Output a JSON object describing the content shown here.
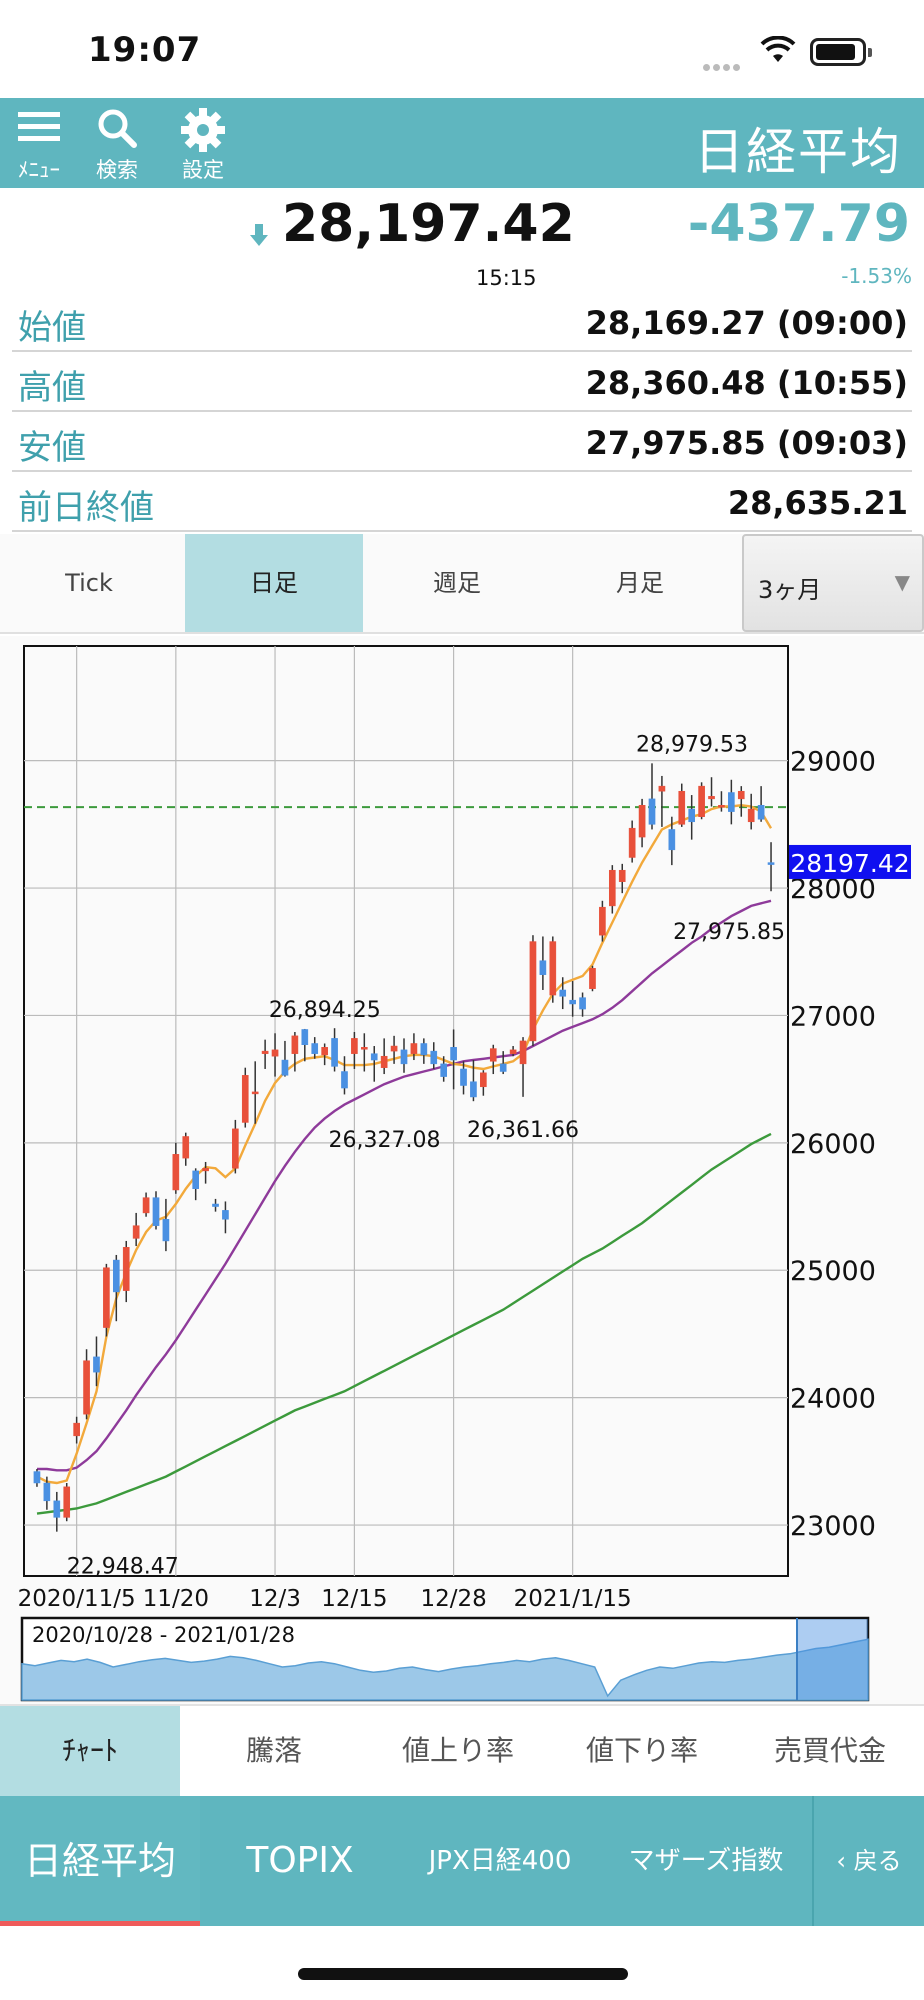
{
  "status_bar": {
    "time": "19:07"
  },
  "header": {
    "menu_label": "ﾒﾆｭｰ",
    "search_label": "検索",
    "settings_label": "設定",
    "title": "日経平均"
  },
  "quote": {
    "price": "28,197.42",
    "time": "15:15",
    "change": "-437.79",
    "change_pct": "-1.53%",
    "rows": [
      {
        "label": "始値",
        "value": "28,169.27 (09:00)"
      },
      {
        "label": "高値",
        "value": "28,360.48 (10:55)"
      },
      {
        "label": "安値",
        "value": "27,975.85 (09:03)"
      },
      {
        "label": "前日終値",
        "value": "28,635.21"
      }
    ]
  },
  "period_tabs": [
    {
      "label": "Tick",
      "active": false
    },
    {
      "label": "日足",
      "active": true
    },
    {
      "label": "週足",
      "active": false
    },
    {
      "label": "月足",
      "active": false
    }
  ],
  "period_select": {
    "value": "3ヶ月",
    "arrow": "▼"
  },
  "chart_data": {
    "type": "candlestick",
    "y_axis": {
      "min": 22600,
      "max": 29900,
      "ticks": [
        23000,
        24000,
        25000,
        26000,
        27000,
        28000,
        29000
      ],
      "position": "right"
    },
    "x_ticks": [
      "2020/11/5",
      "11/20",
      "12/3",
      "12/15",
      "12/28",
      "2021/1/15"
    ],
    "current_price_label": "28197.42",
    "reference_line": 28635,
    "annotations": [
      {
        "text": "22,948.47",
        "value": 22948.47
      },
      {
        "text": "26,894.25",
        "value": 26894.25
      },
      {
        "text": "26,327.08",
        "value": 26327.08
      },
      {
        "text": "26,361.66",
        "value": 26361.66
      },
      {
        "text": "28,979.53",
        "value": 28979.53
      },
      {
        "text": "27,975.85",
        "value": 27975.85
      }
    ],
    "candles": [
      [
        23420,
        23440,
        23300,
        23330
      ],
      [
        23330,
        23380,
        23120,
        23190
      ],
      [
        23190,
        23260,
        22948,
        23060
      ],
      [
        23060,
        23330,
        23030,
        23300
      ],
      [
        23700,
        23850,
        23640,
        23800
      ],
      [
        23870,
        24380,
        23830,
        24290
      ],
      [
        24320,
        24480,
        24090,
        24200
      ],
      [
        24550,
        25050,
        24480,
        25020
      ],
      [
        25080,
        25120,
        24600,
        24830
      ],
      [
        24840,
        25230,
        24750,
        25180
      ],
      [
        25250,
        25450,
        25190,
        25350
      ],
      [
        25450,
        25610,
        25420,
        25570
      ],
      [
        25570,
        25620,
        25320,
        25350
      ],
      [
        25400,
        25560,
        25150,
        25230
      ],
      [
        25630,
        26000,
        25600,
        25910
      ],
      [
        25880,
        26080,
        25820,
        26050
      ],
      [
        25780,
        25800,
        25550,
        25640
      ],
      [
        25780,
        25850,
        25680,
        25800
      ],
      [
        25520,
        25560,
        25460,
        25500
      ],
      [
        25470,
        25540,
        25290,
        25400
      ],
      [
        25800,
        26180,
        25760,
        26110
      ],
      [
        26160,
        26590,
        26120,
        26530
      ],
      [
        26400,
        26640,
        26150,
        26400
      ],
      [
        26700,
        26810,
        26580,
        26720
      ],
      [
        26680,
        26860,
        26520,
        26730
      ],
      [
        26650,
        26800,
        26520,
        26530
      ],
      [
        26700,
        26870,
        26560,
        26840
      ],
      [
        26890,
        26894,
        26640,
        26770
      ],
      [
        26780,
        26830,
        26660,
        26700
      ],
      [
        26690,
        26780,
        26610,
        26750
      ],
      [
        26820,
        26900,
        26560,
        26600
      ],
      [
        26560,
        26680,
        26380,
        26430
      ],
      [
        26700,
        26870,
        26580,
        26820
      ],
      [
        26740,
        26860,
        26560,
        26750
      ],
      [
        26700,
        26760,
        26480,
        26650
      ],
      [
        26590,
        26820,
        26540,
        26680
      ],
      [
        26720,
        26840,
        26620,
        26760
      ],
      [
        26730,
        26820,
        26550,
        26620
      ],
      [
        26700,
        26860,
        26650,
        26780
      ],
      [
        26780,
        26820,
        26620,
        26690
      ],
      [
        26720,
        26790,
        26580,
        26620
      ],
      [
        26620,
        26680,
        26480,
        26520
      ],
      [
        26750,
        26890,
        26420,
        26650
      ],
      [
        26580,
        26640,
        26380,
        26450
      ],
      [
        26480,
        26650,
        26327,
        26360
      ],
      [
        26440,
        26570,
        26370,
        26550
      ],
      [
        26640,
        26770,
        26540,
        26740
      ],
      [
        26620,
        26720,
        26540,
        26560
      ],
      [
        26700,
        26760,
        26680,
        26730
      ],
      [
        26620,
        26830,
        26361,
        26800
      ],
      [
        26800,
        27630,
        26760,
        27580
      ],
      [
        27430,
        27620,
        27200,
        27320
      ],
      [
        27160,
        27620,
        27100,
        27580
      ],
      [
        27200,
        27300,
        27050,
        27150
      ],
      [
        27120,
        27270,
        26990,
        27090
      ],
      [
        27140,
        27180,
        26990,
        27050
      ],
      [
        27210,
        27390,
        27190,
        27370
      ],
      [
        27630,
        27900,
        27580,
        27850
      ],
      [
        27860,
        28180,
        27800,
        28140
      ],
      [
        28050,
        28190,
        27960,
        28140
      ],
      [
        28240,
        28530,
        28200,
        28470
      ],
      [
        28400,
        28700,
        28320,
        28650
      ],
      [
        28700,
        28979,
        28460,
        28500
      ],
      [
        28760,
        28880,
        28480,
        28800
      ],
      [
        28460,
        28560,
        28180,
        28300
      ],
      [
        28500,
        28820,
        28480,
        28760
      ],
      [
        28620,
        28730,
        28380,
        28520
      ],
      [
        28560,
        28830,
        28540,
        28800
      ],
      [
        28700,
        28870,
        28640,
        28720
      ],
      [
        28640,
        28760,
        28600,
        28650
      ],
      [
        28750,
        28850,
        28500,
        28600
      ],
      [
        28700,
        28800,
        28560,
        28760
      ],
      [
        28520,
        28740,
        28460,
        28620
      ],
      [
        28650,
        28800,
        28520,
        28540
      ],
      [
        28200,
        28360,
        27975,
        28197
      ]
    ],
    "ma_short": [
      23380,
      23340,
      23330,
      23350,
      23560,
      23800,
      24050,
      24480,
      24780,
      24980,
      25160,
      25300,
      25390,
      25420,
      25520,
      25640,
      25740,
      25810,
      25800,
      25730,
      25800,
      25980,
      26150,
      26330,
      26470,
      26560,
      26620,
      26660,
      26670,
      26680,
      26650,
      26610,
      26610,
      26610,
      26620,
      26640,
      26660,
      26680,
      26690,
      26690,
      26680,
      26650,
      26620,
      26610,
      26590,
      26580,
      26600,
      26620,
      26640,
      26700,
      26890,
      27040,
      27170,
      27250,
      27280,
      27310,
      27400,
      27570,
      27730,
      27890,
      28050,
      28200,
      28330,
      28460,
      28500,
      28530,
      28560,
      28580,
      28620,
      28640,
      28640,
      28650,
      28640,
      28600,
      28470
    ],
    "ma_mid": [
      23440,
      23440,
      23430,
      23430,
      23450,
      23510,
      23580,
      23680,
      23790,
      23900,
      24020,
      24130,
      24240,
      24340,
      24450,
      24570,
      24690,
      24810,
      24930,
      25050,
      25180,
      25310,
      25440,
      25570,
      25700,
      25820,
      25930,
      26030,
      26120,
      26190,
      26250,
      26300,
      26340,
      26380,
      26420,
      26460,
      26490,
      26520,
      26540,
      26560,
      26580,
      26600,
      26620,
      26640,
      26650,
      26660,
      26670,
      26680,
      26690,
      26720,
      26760,
      26800,
      26840,
      26880,
      26910,
      26940,
      26970,
      27010,
      27060,
      27120,
      27190,
      27260,
      27330,
      27390,
      27450,
      27510,
      27570,
      27620,
      27680,
      27730,
      27780,
      27820,
      27860,
      27880,
      27900
    ],
    "ma_long": [
      23090,
      23100,
      23110,
      23120,
      23130,
      23150,
      23170,
      23200,
      23230,
      23260,
      23290,
      23320,
      23350,
      23380,
      23420,
      23460,
      23500,
      23540,
      23580,
      23620,
      23660,
      23700,
      23740,
      23780,
      23820,
      23860,
      23900,
      23930,
      23960,
      23990,
      24020,
      24050,
      24090,
      24130,
      24170,
      24210,
      24250,
      24290,
      24330,
      24370,
      24410,
      24450,
      24490,
      24530,
      24570,
      24610,
      24650,
      24690,
      24740,
      24790,
      24840,
      24890,
      24940,
      24990,
      25040,
      25090,
      25130,
      25170,
      25220,
      25270,
      25320,
      25370,
      25430,
      25490,
      25550,
      25610,
      25670,
      25730,
      25790,
      25840,
      25890,
      25940,
      25990,
      26030,
      26070
    ],
    "colors": {
      "up": "#e8503a",
      "down": "#4a90e2",
      "ma_short": "#f2a93b",
      "ma_mid": "#8e3a9a",
      "ma_long": "#3c9a3c",
      "reference": "#3c9a3c",
      "price_badge": "#1010f0"
    }
  },
  "navigator": {
    "range_label": "2020/10/28 - 2021/01/28",
    "values": [
      0.55,
      0.52,
      0.56,
      0.6,
      0.58,
      0.62,
      0.57,
      0.5,
      0.54,
      0.58,
      0.61,
      0.63,
      0.6,
      0.57,
      0.59,
      0.62,
      0.66,
      0.64,
      0.6,
      0.55,
      0.5,
      0.52,
      0.56,
      0.58,
      0.55,
      0.5,
      0.45,
      0.42,
      0.44,
      0.48,
      0.5,
      0.46,
      0.43,
      0.47,
      0.5,
      0.52,
      0.55,
      0.57,
      0.6,
      0.58,
      0.62,
      0.64,
      0.6,
      0.55,
      0.5,
      0.06,
      0.3,
      0.38,
      0.45,
      0.5,
      0.48,
      0.52,
      0.56,
      0.58,
      0.57,
      0.6,
      0.62,
      0.65,
      0.68,
      0.7,
      0.74,
      0.78,
      0.8,
      0.84,
      0.88,
      0.92
    ]
  },
  "view_tabs": [
    {
      "label": "ﾁｬｰﾄ",
      "active": true
    },
    {
      "label": "騰落",
      "active": false
    },
    {
      "label": "値上り率",
      "active": false
    },
    {
      "label": "値下り率",
      "active": false
    },
    {
      "label": "売買代金",
      "active": false
    }
  ],
  "index_tabs": [
    {
      "label": "日経平均",
      "active": true
    },
    {
      "label": "TOPIX",
      "active": false
    },
    {
      "label": "JPX日経400",
      "active": false
    },
    {
      "label": "マザーズ指数",
      "active": false
    }
  ],
  "back_label": "戻る"
}
